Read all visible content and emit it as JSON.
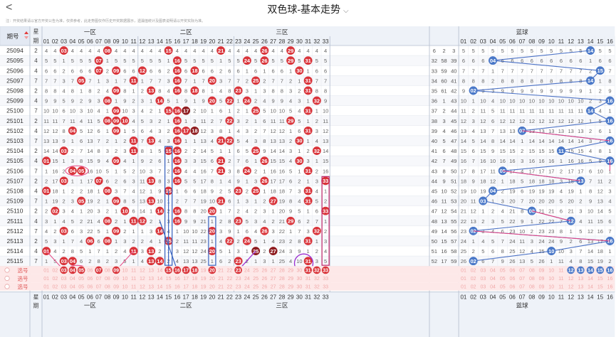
{
  "header": {
    "back_label": "<",
    "title": "双色球-基本走势",
    "title_chevron": "⌵",
    "note": "注：开奖结果请以官方开奖公告为准，仅供参考，此走势图仅作历史开奖数据展示，遗漏值统计及图表说明请以开奖实际为准。"
  },
  "table_header": {
    "period_label": "期号",
    "week_label_top": "星",
    "week_label_bottom": "期",
    "zones": [
      "一区",
      "二区",
      "三区",
      "蓝球"
    ],
    "red_numbers": [
      "01",
      "02",
      "03",
      "04",
      "05",
      "06",
      "07",
      "08",
      "09",
      "10",
      "11",
      "12",
      "13",
      "14",
      "15",
      "16",
      "17",
      "18",
      "19",
      "20",
      "21",
      "22",
      "23",
      "24",
      "25",
      "26",
      "27",
      "28",
      "29",
      "30",
      "31",
      "32",
      "33"
    ],
    "blue_numbers": [
      "01",
      "02",
      "03",
      "04",
      "05",
      "06",
      "07",
      "08",
      "09",
      "10",
      "11",
      "12",
      "13",
      "14",
      "15",
      "16"
    ]
  },
  "periods": [
    "25094",
    "25095",
    "25096",
    "25097",
    "25098",
    "25099",
    "25100",
    "25101",
    "25102",
    "25103",
    "25104",
    "25105",
    "25106",
    "25107",
    "25108",
    "25109",
    "25110",
    "25111",
    "25112",
    "25113",
    "25114",
    "25115"
  ],
  "weeks": [
    "2",
    "4",
    "4",
    "7",
    "2",
    "4",
    "7",
    "2",
    "4",
    "7",
    "2",
    "4",
    "7",
    "2",
    "4",
    "7",
    "2",
    "4",
    "7",
    "2",
    "4",
    "7"
  ],
  "reds": [
    [
      3,
      8,
      15,
      21,
      26,
      29
    ],
    [
      7,
      16,
      24,
      26,
      29,
      31
    ],
    [
      7,
      9,
      12,
      16,
      18,
      30
    ],
    [
      5,
      11,
      16,
      20,
      25,
      31
    ],
    [
      9,
      13,
      16,
      18,
      23,
      31
    ],
    [
      8,
      14,
      20,
      22,
      24,
      32
    ],
    [
      9,
      15,
      16,
      17,
      25,
      31
    ],
    [
      8,
      9,
      10,
      16,
      22,
      29
    ],
    [
      4,
      9,
      16,
      17,
      18,
      31
    ],
    [
      11,
      13,
      16,
      21,
      22,
      30
    ],
    [
      3,
      11,
      15,
      16,
      25,
      32
    ],
    [
      1,
      9,
      16,
      21,
      26,
      30
    ],
    [
      4,
      5,
      16,
      21,
      24,
      31
    ],
    [
      3,
      7,
      13,
      16,
      26,
      33
    ],
    [
      1,
      8,
      15,
      23,
      25,
      31
    ],
    [
      5,
      9,
      13,
      21,
      27,
      31
    ],
    [
      2,
      10,
      14,
      16,
      20,
      33
    ],
    [
      8,
      11,
      12,
      16,
      23,
      29
    ],
    [
      3,
      9,
      14,
      20,
      26,
      32
    ],
    [
      6,
      8,
      15,
      22,
      24,
      31
    ],
    [
      1,
      11,
      13,
      20,
      25,
      27
    ],
    [
      3,
      4,
      13,
      14,
      23,
      31
    ]
  ],
  "blues": [
    14,
    4,
    15,
    14,
    2,
    16,
    14,
    16,
    7,
    16,
    11,
    16,
    5,
    13,
    4,
    3,
    8,
    12,
    2,
    16,
    10,
    2
  ],
  "blue_left_cols": [
    [
      "6",
      "2",
      "3"
    ],
    [
      "32",
      "58",
      "39"
    ],
    [
      "33",
      "59",
      "40"
    ],
    [
      "34",
      "60",
      "41"
    ],
    [
      "35",
      "61",
      "42"
    ],
    [
      "36",
      "1",
      "43"
    ],
    [
      "37",
      "2",
      "44"
    ],
    [
      "38",
      "3",
      "45"
    ],
    [
      "39",
      "4",
      "46"
    ],
    [
      "40",
      "5",
      "47"
    ],
    [
      "41",
      "6",
      "48"
    ],
    [
      "42",
      "7",
      "49"
    ],
    [
      "43",
      "8",
      "50"
    ],
    [
      "44",
      "9",
      "51"
    ],
    [
      "45",
      "10",
      "52"
    ],
    [
      "46",
      "11",
      "53"
    ],
    [
      "47",
      "12",
      "54"
    ],
    [
      "48",
      "13",
      "55"
    ],
    [
      "49",
      "14",
      "56"
    ],
    [
      "50",
      "15",
      "57"
    ],
    [
      "51",
      "16",
      "58"
    ],
    [
      "52",
      "17",
      "59"
    ]
  ],
  "select_rows": [
    {
      "label": "选号",
      "red_selected": [
        3,
        4,
        5,
        7,
        9,
        15,
        16,
        17,
        18,
        20,
        23,
        31,
        32,
        33
      ],
      "blue_selected": [
        12,
        13,
        14,
        15,
        16
      ]
    },
    {
      "label": "选号",
      "red_selected": [],
      "blue_selected": []
    },
    {
      "label": "选号",
      "red_selected": [],
      "blue_selected": []
    }
  ],
  "colors": {
    "red_ball": "#d9343a",
    "red_ball_dark": "#8e1b1f",
    "blue_ball": "#4a78c8",
    "pink_line": "#e8407f",
    "blue_line": "#3a64c0",
    "purple_mark": "#9b2fd0",
    "header_bg": "#eef2f8",
    "select_bg": "#fde8e8",
    "row_alt_bg": "#f7f8fb"
  }
}
